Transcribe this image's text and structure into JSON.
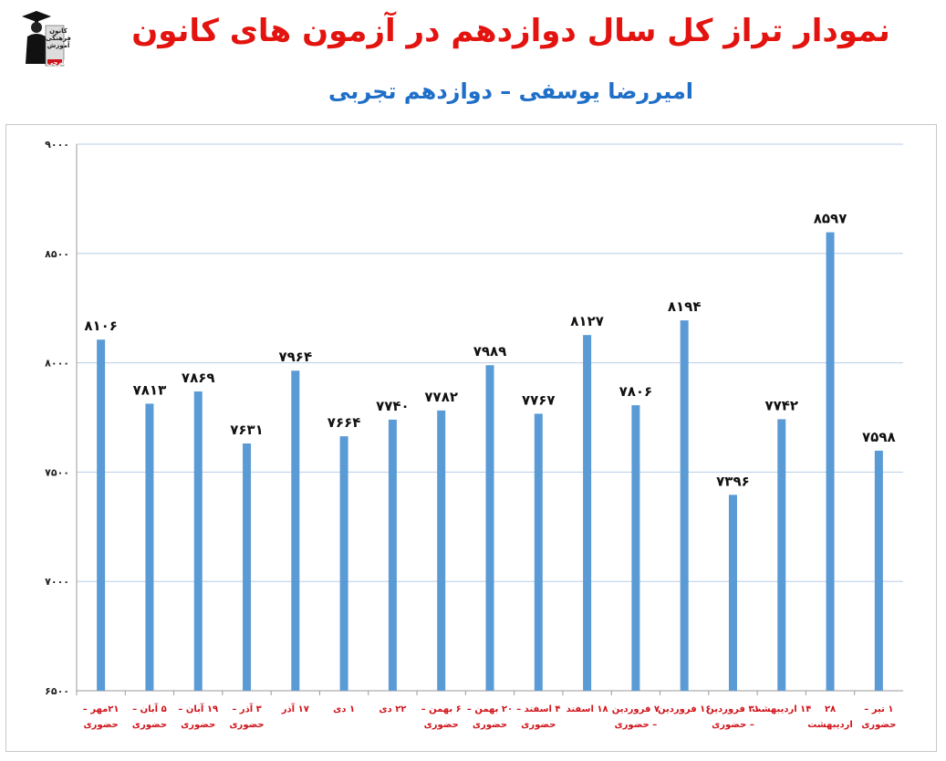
{
  "header": {
    "title": "نمودار تراز کل سال دوازدهم در آزمون های کانون",
    "subtitle": "امیررضا یوسفی – دوازدهم تجربی"
  },
  "logo": {
    "line1": "کانون",
    "line2": "فرهنگی",
    "line3": "آموزش",
    "line4": "قلم‌چی"
  },
  "colors": {
    "title": "#e3140f",
    "subtitle": "#1f6fc8",
    "bar": "#5b9bd5",
    "category_label": "#d0141b",
    "grid": "#b7cde6"
  },
  "chart_data": {
    "type": "bar",
    "categories": [
      [
        "۲۱مهر –",
        "حضوری"
      ],
      [
        "۵ آبان –",
        "حضوری"
      ],
      [
        "۱۹ آبان –",
        "حضوری"
      ],
      [
        "۳ آذر –",
        "حضوری"
      ],
      [
        "۱۷ آذر"
      ],
      [
        "۱ دی"
      ],
      [
        "۲۲ دی"
      ],
      [
        "۶ بهمن –",
        "حضوری"
      ],
      [
        "۲۰ بهمن –",
        "حضوری"
      ],
      [
        "۴ اسفند –",
        "حضوری"
      ],
      [
        "۱۸ اسفند"
      ],
      [
        "۷ فروردین",
        "– حضوری"
      ],
      [
        "۱۶ فروردین"
      ],
      [
        "۳۱ فروردین",
        "– حضوری"
      ],
      [
        "۱۴ اردیبهشت"
      ],
      [
        "۲۸",
        "اردیبهشت"
      ],
      [
        "۱ تیر –",
        "حضوری"
      ]
    ],
    "values": [
      8106,
      7813,
      7869,
      7631,
      7964,
      7664,
      7740,
      7782,
      7989,
      7767,
      8127,
      7806,
      8194,
      7396,
      7742,
      8597,
      7598
    ],
    "value_labels": [
      "۸۱۰۶",
      "۷۸۱۳",
      "۷۸۶۹",
      "۷۶۳۱",
      "۷۹۶۴",
      "۷۶۶۴",
      "۷۷۴۰",
      "۷۷۸۲",
      "۷۹۸۹",
      "۷۷۶۷",
      "۸۱۲۷",
      "۷۸۰۶",
      "۸۱۹۴",
      "۷۳۹۶",
      "۷۷۴۲",
      "۸۵۹۷",
      "۷۵۹۸"
    ],
    "ylim": [
      6500,
      9000
    ],
    "yticks": [
      6500,
      7000,
      7500,
      8000,
      8500,
      9000
    ],
    "ytick_labels": [
      "۶۵۰۰",
      "۷۰۰۰",
      "۷۵۰۰",
      "۸۰۰۰",
      "۸۵۰۰",
      "۹۰۰۰"
    ],
    "grid": true,
    "legend": "none"
  }
}
